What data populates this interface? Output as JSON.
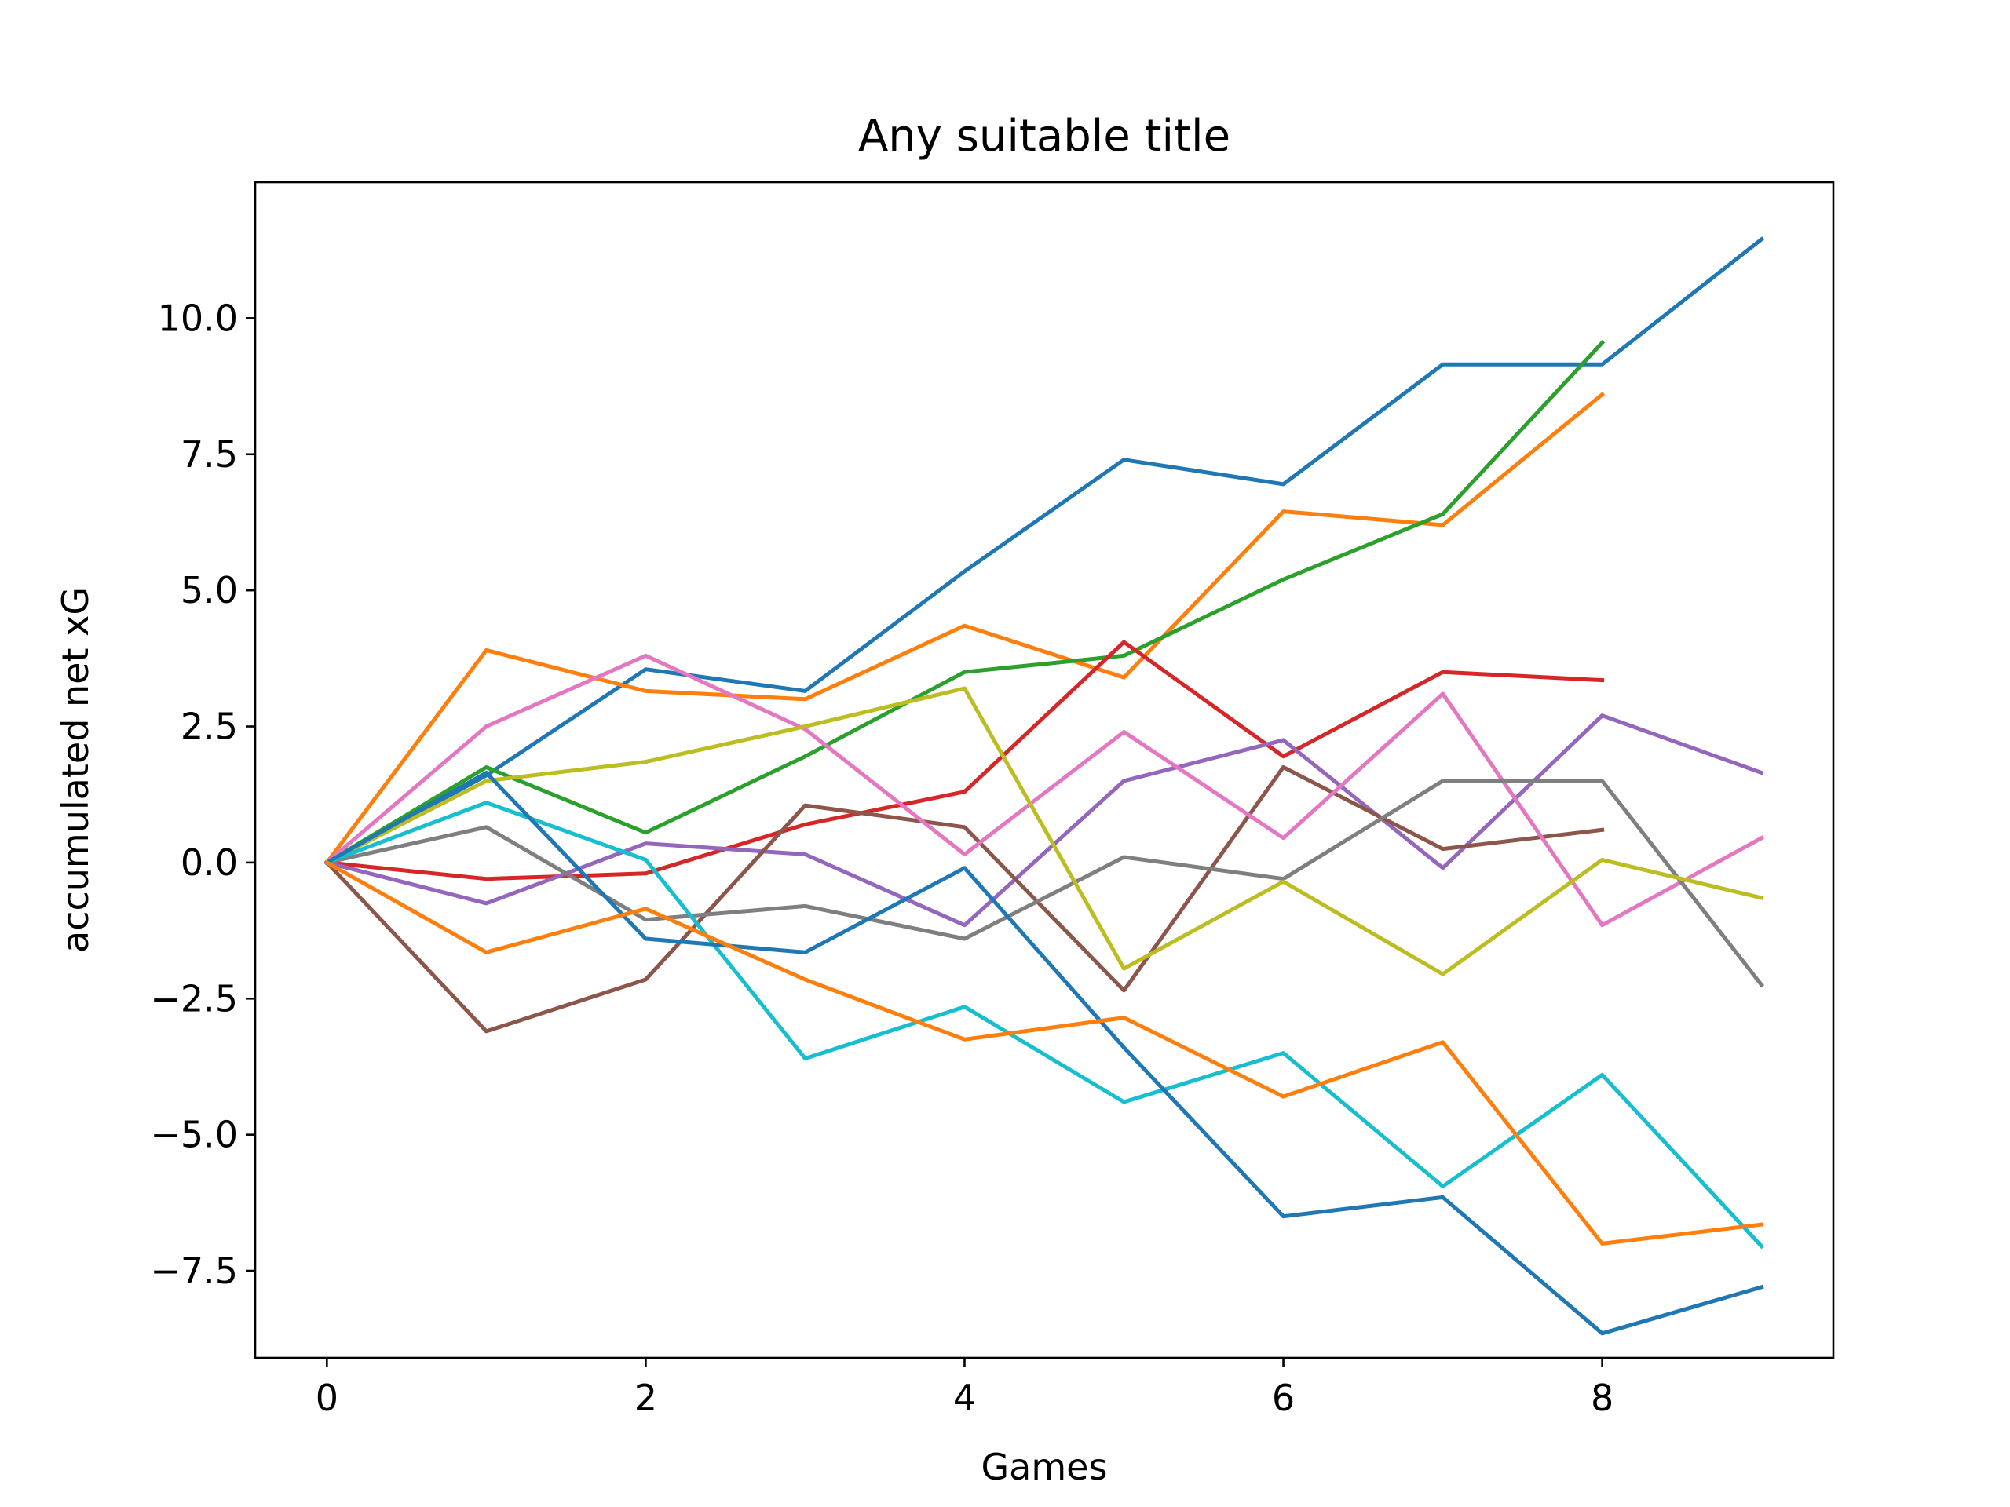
{
  "chart_data": {
    "type": "line",
    "title": "Any suitable title",
    "xlabel": "Games",
    "ylabel": "accumulated net xG",
    "xlim": [
      -0.45,
      9.45
    ],
    "ylim": [
      -9.1,
      12.5
    ],
    "xticks": [
      0,
      2,
      4,
      6,
      8
    ],
    "xtick_labels": [
      "0",
      "2",
      "4",
      "6",
      "8"
    ],
    "yticks": [
      -7.5,
      -5.0,
      -2.5,
      0.0,
      2.5,
      5.0,
      7.5,
      10.0
    ],
    "ytick_labels": [
      "−7.5",
      "−5.0",
      "−2.5",
      "0.0",
      "2.5",
      "5.0",
      "7.5",
      "10.0"
    ],
    "grid": false,
    "legend": false,
    "series": [
      {
        "color": "#1f77b4",
        "x": [
          0,
          1,
          2,
          3,
          4,
          5,
          6,
          7,
          8,
          9
        ],
        "y": [
          0,
          1.6,
          3.55,
          3.15,
          5.35,
          7.4,
          6.95,
          9.15,
          9.15,
          11.45
        ]
      },
      {
        "color": "#ff7f0e",
        "x": [
          0,
          1,
          2,
          3,
          4,
          5,
          6,
          7,
          8
        ],
        "y": [
          0,
          3.9,
          3.15,
          3.0,
          4.35,
          3.4,
          6.45,
          6.2,
          8.6
        ]
      },
      {
        "color": "#2ca02c",
        "x": [
          0,
          1,
          2,
          3,
          4,
          5,
          6,
          7,
          8
        ],
        "y": [
          0,
          1.75,
          0.55,
          1.95,
          3.5,
          3.8,
          5.2,
          6.4,
          9.55
        ]
      },
      {
        "color": "#d62728",
        "x": [
          0,
          1,
          2,
          3,
          4,
          5,
          6,
          7,
          8
        ],
        "y": [
          0,
          -0.3,
          -0.2,
          0.7,
          1.3,
          4.05,
          1.95,
          3.5,
          3.35
        ]
      },
      {
        "color": "#9467bd",
        "x": [
          0,
          1,
          2,
          3,
          4,
          5,
          6,
          7,
          8,
          9
        ],
        "y": [
          0,
          -0.75,
          0.35,
          0.15,
          -1.15,
          1.5,
          2.25,
          -0.1,
          2.7,
          1.65
        ]
      },
      {
        "color": "#8c564b",
        "x": [
          0,
          1,
          2,
          3,
          4,
          5,
          6,
          7,
          8
        ],
        "y": [
          0,
          -3.1,
          -2.15,
          1.05,
          0.65,
          -2.35,
          1.75,
          0.25,
          0.6
        ]
      },
      {
        "color": "#e377c2",
        "x": [
          0,
          1,
          2,
          3,
          4,
          5,
          6,
          7,
          8,
          9
        ],
        "y": [
          0,
          2.5,
          3.8,
          2.45,
          0.15,
          2.4,
          0.45,
          3.1,
          -1.15,
          0.45
        ]
      },
      {
        "color": "#7f7f7f",
        "x": [
          0,
          1,
          2,
          3,
          4,
          5,
          6,
          7,
          8,
          9
        ],
        "y": [
          0,
          0.65,
          -1.05,
          -0.8,
          -1.4,
          0.1,
          -0.3,
          1.5,
          1.5,
          -2.25
        ]
      },
      {
        "color": "#bcbd22",
        "x": [
          0,
          1,
          2,
          3,
          4,
          5,
          6,
          7,
          8,
          9
        ],
        "y": [
          0,
          1.5,
          1.85,
          2.5,
          3.2,
          -1.95,
          -0.35,
          -2.05,
          0.05,
          -0.65
        ]
      },
      {
        "color": "#17becf",
        "x": [
          0,
          1,
          2,
          3,
          4,
          5,
          6,
          7,
          8,
          9
        ],
        "y": [
          0,
          1.1,
          0.05,
          -3.6,
          -2.65,
          -4.4,
          -3.5,
          -5.95,
          -3.9,
          -7.05
        ]
      },
      {
        "color": "#1f77b4",
        "x": [
          0,
          1,
          2,
          3,
          4,
          5,
          6,
          7,
          8,
          9
        ],
        "y": [
          0,
          1.65,
          -1.4,
          -1.65,
          -0.1,
          -3.4,
          -6.5,
          -6.15,
          -8.65,
          -7.8
        ]
      },
      {
        "color": "#ff7f0e",
        "x": [
          0,
          1,
          2,
          3,
          4,
          5,
          6,
          7,
          8,
          9
        ],
        "y": [
          0,
          -1.65,
          -0.85,
          -2.15,
          -3.25,
          -2.85,
          -4.3,
          -3.3,
          -7.0,
          -6.65
        ]
      }
    ]
  }
}
